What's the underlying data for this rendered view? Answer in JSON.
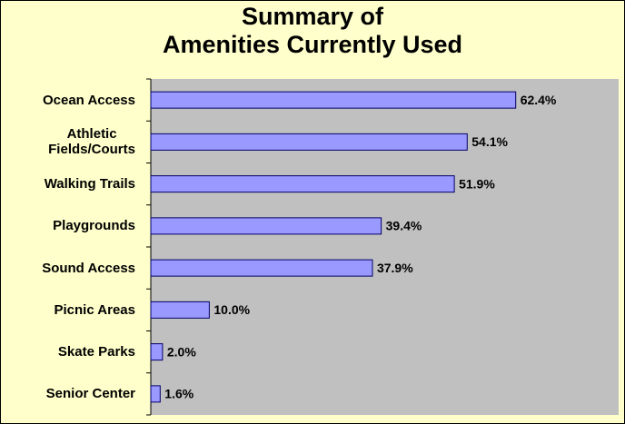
{
  "chart_data": {
    "type": "barh",
    "title": "Summary of\nAmenities Currently Used",
    "categories": [
      "Ocean Access",
      "Athletic\nFields/Courts",
      "Walking Trails",
      "Playgrounds",
      "Sound Access",
      "Picnic Areas",
      "Skate Parks",
      "Senior Center"
    ],
    "values": [
      62.4,
      54.1,
      51.9,
      39.4,
      37.9,
      10.0,
      2.0,
      1.6
    ],
    "value_labels": [
      "62.4%",
      "54.1%",
      "51.9%",
      "39.4%",
      "37.9%",
      "10.0%",
      "2.0%",
      "1.6%"
    ],
    "color": "#9999ff",
    "xlim": [
      0,
      80
    ],
    "grid": false
  }
}
